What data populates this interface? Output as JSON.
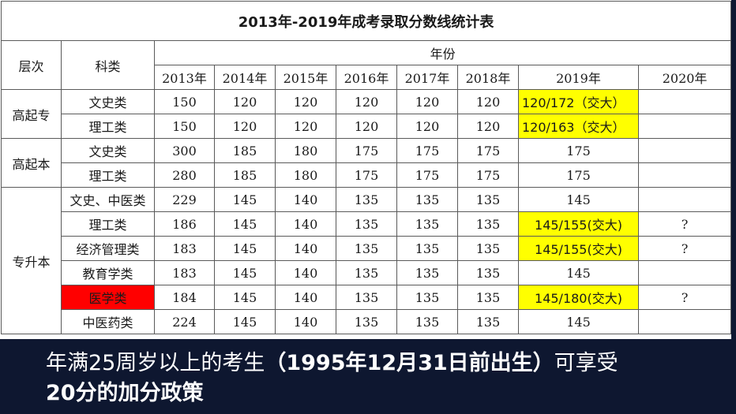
{
  "table": {
    "title": "2013年-2019年成考录取分数线统计表",
    "header": {
      "level": "层次",
      "subject": "科类",
      "years_group": "年份",
      "years": [
        "2013年",
        "2014年",
        "2015年",
        "2016年",
        "2017年",
        "2018年",
        "2019年",
        "2020年"
      ]
    },
    "groups": [
      {
        "level": "高起专",
        "rows": [
          {
            "subject": "文史类",
            "values": [
              "150",
              "120",
              "120",
              "120",
              "120",
              "120"
            ],
            "y2019": "120/172（交大）",
            "y2020": ""
          },
          {
            "subject": "理工类",
            "values": [
              "150",
              "120",
              "120",
              "120",
              "120",
              "120"
            ],
            "y2019": "120/163（交大）",
            "y2020": ""
          }
        ]
      },
      {
        "level": "高起本",
        "rows": [
          {
            "subject": "文史类",
            "values": [
              "300",
              "185",
              "180",
              "175",
              "175",
              "175"
            ],
            "y2019": "175",
            "y2020": ""
          },
          {
            "subject": "理工类",
            "values": [
              "280",
              "185",
              "180",
              "175",
              "175",
              "175"
            ],
            "y2019": "175",
            "y2020": ""
          }
        ]
      },
      {
        "level": "专升本",
        "rows": [
          {
            "subject": "文史、中医类",
            "values": [
              "229",
              "145",
              "140",
              "135",
              "135",
              "135"
            ],
            "y2019": "145",
            "y2020": ""
          },
          {
            "subject": "理工类",
            "values": [
              "186",
              "145",
              "140",
              "135",
              "135",
              "135"
            ],
            "y2019": "145/155(交大)",
            "y2020": "?"
          },
          {
            "subject": "经济管理类",
            "values": [
              "183",
              "145",
              "140",
              "135",
              "135",
              "135"
            ],
            "y2019": "145/155(交大)",
            "y2020": "?"
          },
          {
            "subject": "教育学类",
            "values": [
              "183",
              "145",
              "140",
              "135",
              "135",
              "135"
            ],
            "y2019": "145",
            "y2020": ""
          },
          {
            "subject": "医学类",
            "values": [
              "184",
              "145",
              "140",
              "135",
              "135",
              "135"
            ],
            "y2019": "145/180(交大)",
            "y2020": "?"
          },
          {
            "subject": "中医药类",
            "values": [
              "224",
              "145",
              "140",
              "135",
              "135",
              "135"
            ],
            "y2019": "145",
            "y2020": ""
          }
        ]
      }
    ]
  },
  "caption": {
    "line1_pre": "年满25周岁以上的考生",
    "line1_bold": "（1995年12月31日前出生）",
    "line1_post": "可享受",
    "line2_bold": "20分的加分政策"
  },
  "colors": {
    "highlight_yellow": "#ffff00",
    "highlight_red": "#ff0000",
    "footer_bg": "#0e1730"
  }
}
